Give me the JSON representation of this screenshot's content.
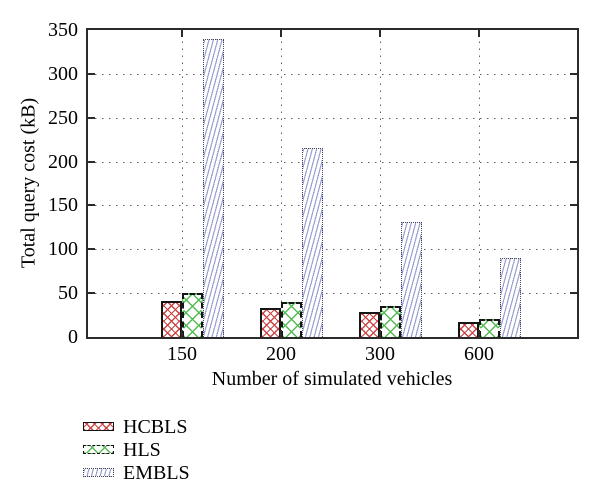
{
  "figure": {
    "background": "#ffffff"
  },
  "chart_data": {
    "type": "bar",
    "title": "",
    "xlabel": "Number of simulated vehicles",
    "ylabel": "Total query cost (kB)",
    "categories": [
      "150",
      "200",
      "300",
      "600"
    ],
    "series": [
      {
        "name": "HCBLS",
        "values": [
          41,
          33,
          28,
          17
        ],
        "color": "#cc4444",
        "pattern": "fine-crosshatch",
        "border": "solid"
      },
      {
        "name": "HLS",
        "values": [
          50,
          40,
          35,
          20
        ],
        "color": "#55bb55",
        "pattern": "wide-crosshatch",
        "border": "dashed"
      },
      {
        "name": "EMBLS",
        "values": [
          340,
          216,
          131,
          90
        ],
        "color": "#9a9fd0",
        "pattern": "diagonal-lines",
        "border": "dotted"
      }
    ],
    "ylim": [
      0,
      350
    ],
    "ytick_step": 50,
    "grid": true,
    "legend_position": "below-left",
    "frame_color": "#2b2b2b",
    "grid_color": "#606060"
  }
}
